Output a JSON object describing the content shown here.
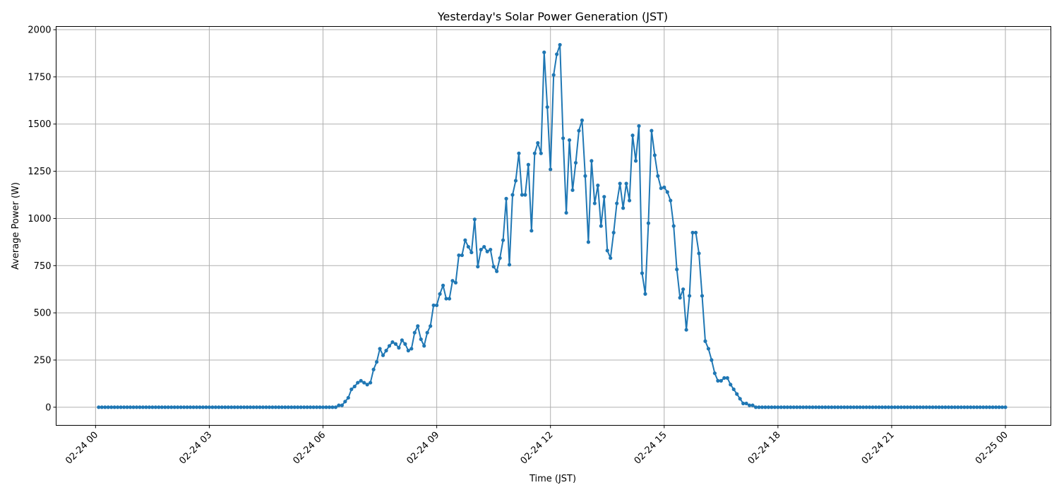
{
  "chart_data": {
    "type": "line",
    "title": "Yesterday's Solar Power Generation (JST)",
    "xlabel": "Time (JST)",
    "ylabel": "Average Power (W)",
    "date": "02-24",
    "xlim_hours": [
      -1.04,
      25.2
    ],
    "ylim": [
      -96,
      2017
    ],
    "x_ticks": [
      {
        "hour": 0,
        "label": "02-24 00"
      },
      {
        "hour": 3,
        "label": "02-24 03"
      },
      {
        "hour": 6,
        "label": "02-24 06"
      },
      {
        "hour": 9,
        "label": "02-24 09"
      },
      {
        "hour": 12,
        "label": "02-24 12"
      },
      {
        "hour": 15,
        "label": "02-24 15"
      },
      {
        "hour": 18,
        "label": "02-24 18"
      },
      {
        "hour": 21,
        "label": "02-24 21"
      },
      {
        "hour": 24,
        "label": "02-25 00"
      }
    ],
    "y_ticks": [
      0,
      250,
      500,
      750,
      1000,
      1250,
      1500,
      1750,
      2000
    ],
    "grid": true,
    "marker": "circle",
    "color": "#1f77b4",
    "x_interval_minutes": 5,
    "x_first": "00:05",
    "values": [
      0,
      0,
      0,
      0,
      0,
      0,
      0,
      0,
      0,
      0,
      0,
      0,
      0,
      0,
      0,
      0,
      0,
      0,
      0,
      0,
      0,
      0,
      0,
      0,
      0,
      0,
      0,
      0,
      0,
      0,
      0,
      0,
      0,
      0,
      0,
      0,
      0,
      0,
      0,
      0,
      0,
      0,
      0,
      0,
      0,
      0,
      0,
      0,
      0,
      0,
      0,
      0,
      0,
      0,
      0,
      0,
      0,
      0,
      0,
      0,
      0,
      0,
      0,
      0,
      0,
      0,
      0,
      0,
      0,
      0,
      0,
      0,
      0,
      0,
      0,
      0,
      10,
      10,
      30,
      50,
      95,
      110,
      130,
      140,
      130,
      120,
      130,
      200,
      240,
      310,
      275,
      300,
      325,
      345,
      335,
      315,
      355,
      335,
      300,
      310,
      395,
      430,
      360,
      325,
      395,
      430,
      540,
      540,
      600,
      645,
      575,
      575,
      670,
      660,
      805,
      805,
      885,
      850,
      820,
      995,
      745,
      835,
      850,
      825,
      835,
      745,
      720,
      790,
      885,
      1105,
      755,
      1125,
      1200,
      1345,
      1125,
      1125,
      1285,
      935,
      1345,
      1400,
      1345,
      1880,
      1590,
      1260,
      1760,
      1870,
      1920,
      1425,
      1030,
      1415,
      1150,
      1295,
      1465,
      1520,
      1225,
      875,
      1305,
      1080,
      1175,
      960,
      1115,
      830,
      790,
      925,
      1080,
      1185,
      1055,
      1185,
      1095,
      1440,
      1305,
      1490,
      710,
      600,
      975,
      1465,
      1335,
      1225,
      1160,
      1165,
      1140,
      1095,
      960,
      730,
      580,
      625,
      410,
      590,
      925,
      925,
      815,
      590,
      350,
      310,
      250,
      180,
      140,
      140,
      155,
      155,
      120,
      95,
      70,
      45,
      20,
      20,
      10,
      10,
      0,
      0,
      0,
      0,
      0,
      0,
      0,
      0,
      0,
      0,
      0,
      0,
      0,
      0,
      0,
      0,
      0,
      0,
      0,
      0,
      0,
      0,
      0,
      0,
      0,
      0,
      0,
      0,
      0,
      0,
      0,
      0,
      0,
      0,
      0,
      0,
      0,
      0,
      0,
      0,
      0,
      0,
      0,
      0,
      0,
      0,
      0,
      0,
      0,
      0,
      0,
      0,
      0,
      0,
      0,
      0,
      0,
      0,
      0,
      0,
      0,
      0,
      0,
      0,
      0,
      0,
      0,
      0,
      0,
      0,
      0,
      0,
      0,
      0,
      0,
      0,
      0,
      0,
      0,
      0
    ]
  }
}
